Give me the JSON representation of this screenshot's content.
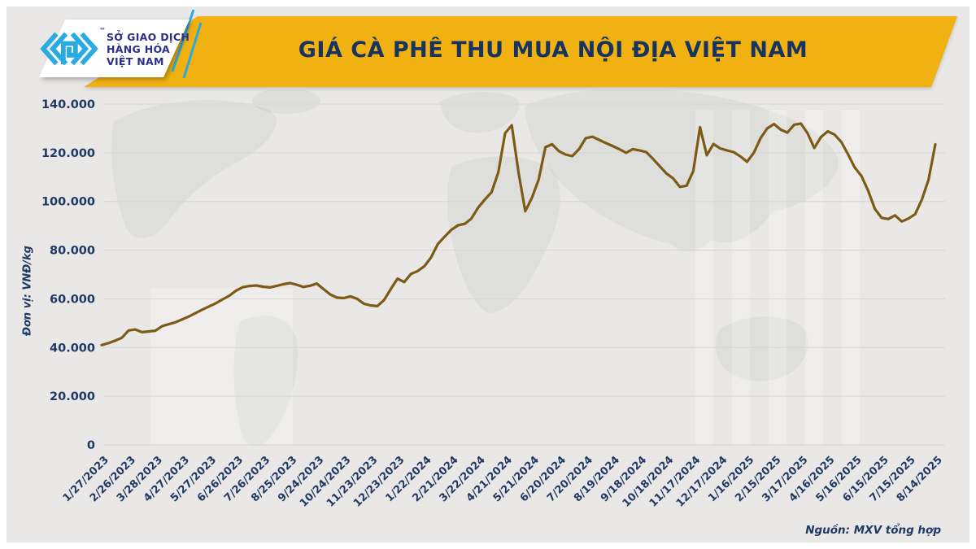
{
  "header": {
    "title": "GIÁ CÀ PHÊ THU MUA NỘI ĐỊA VIỆT NAM",
    "logo": {
      "org_lines": [
        "SỞ GIAO DỊCH",
        "HÀNG HÓA",
        "VIỆT NAM"
      ],
      "trademark": "™"
    }
  },
  "footer": {
    "source": "Nguồn: MXV tổng hợp"
  },
  "colors": {
    "background": "#e9e8e6",
    "banner_yellow": "#f1b211",
    "navy_text": "#1f3864",
    "logo_blue": "#29abe2",
    "logo_text_blue": "#2b3087",
    "line_brown": "#7d5b16",
    "grid_gray": "#d7d6d3"
  },
  "chart_data": {
    "type": "line",
    "title": "GIÁ CÀ PHÊ THU MUA NỘI ĐỊA VIỆT NAM",
    "xlabel": "",
    "ylabel": "Đơn vị: VNĐ/kg",
    "unit": "VNĐ/kg",
    "ylim": [
      0,
      140000
    ],
    "ytick_step": 20000,
    "ytick_labels": [
      "0",
      "20.000",
      "40.000",
      "60.000",
      "80.000",
      "100.000",
      "120.000",
      "140.000"
    ],
    "grid": true,
    "legend_position": "none",
    "line_color": "#7d5b16",
    "x_tick_labels": [
      "1/27/2023",
      "2/26/2023",
      "3/28/2023",
      "4/27/2023",
      "5/27/2023",
      "6/26/2023",
      "7/26/2023",
      "8/25/2023",
      "9/24/2023",
      "10/24/2023",
      "11/23/2023",
      "12/23/2023",
      "1/22/2024",
      "2/21/2024",
      "3/22/2024",
      "4/21/2024",
      "5/21/2024",
      "6/20/2024",
      "7/20/2024",
      "8/19/2024",
      "9/18/2024",
      "10/18/2024",
      "11/17/2024",
      "12/17/2024",
      "1/16/2025",
      "2/15/2025",
      "3/17/2025",
      "4/16/2025",
      "5/16/2025",
      "6/15/2025",
      "7/15/2025",
      "8/14/2025"
    ],
    "points_per_tick_interval": 4,
    "values": [
      41000,
      41800,
      42800,
      44000,
      47000,
      47400,
      46300,
      46600,
      46900,
      48800,
      49600,
      50400,
      51600,
      52800,
      54200,
      55600,
      56900,
      58200,
      59800,
      61300,
      63400,
      64800,
      65300,
      65500,
      65000,
      64700,
      65300,
      66000,
      66500,
      65800,
      64900,
      65400,
      66300,
      64000,
      61800,
      60500,
      60300,
      61000,
      60000,
      58000,
      57300,
      57000,
      59500,
      64000,
      68300,
      66900,
      70200,
      71400,
      73400,
      77000,
      82500,
      85500,
      88300,
      90200,
      90800,
      93000,
      97500,
      100800,
      103800,
      112000,
      128000,
      131300,
      112000,
      96000,
      101500,
      109000,
      122300,
      123500,
      120700,
      119300,
      118600,
      121500,
      126000,
      126600,
      125300,
      124000,
      122800,
      121500,
      120000,
      121500,
      121000,
      120300,
      117500,
      114500,
      111500,
      109500,
      106000,
      106500,
      112500,
      130500,
      119000,
      123600,
      121800,
      121000,
      120300,
      118500,
      116300,
      120000,
      126000,
      130000,
      131800,
      129500,
      128300,
      131500,
      132000,
      128000,
      122000,
      126500,
      128800,
      127500,
      124500,
      119500,
      114000,
      110500,
      104500,
      97000,
      93300,
      92800,
      94300,
      91800,
      93000,
      94800,
      100800,
      109000,
      123500
    ]
  }
}
